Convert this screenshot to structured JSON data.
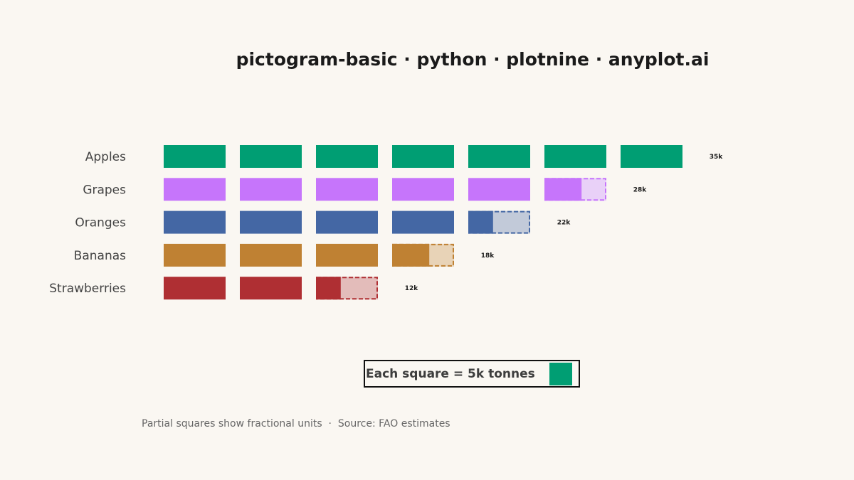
{
  "chart_data": {
    "type": "bar",
    "title": "pictogram-basic · python · plotnine · anyplot.ai",
    "unit_value": 5,
    "categories": [
      "Apples",
      "Grapes",
      "Oranges",
      "Bananas",
      "Strawberries"
    ],
    "values": [
      35,
      28,
      22,
      18,
      12
    ],
    "value_labels": [
      "35k",
      "28k",
      "22k",
      "18k",
      "12k"
    ],
    "colors": [
      "#009e73",
      "#c675fb",
      "#4467a4",
      "#bf8133",
      "#af2f33"
    ],
    "partial_fill_alpha_color": [
      "#009e73",
      "#e9d1f8",
      "#c2cad9",
      "#e8d3b7",
      "#e3bcba"
    ],
    "legend": {
      "label": "Each square = 5k tonnes",
      "color": "#009e73",
      "placement": "bottom-center"
    },
    "caption": "Partial squares show fractional units  ·  Source: FAO estimates",
    "grid": false
  }
}
